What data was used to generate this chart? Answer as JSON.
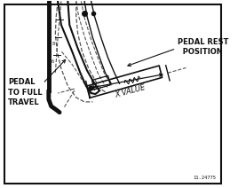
{
  "bg_color": "#ffffff",
  "border_color": "#111111",
  "line_color": "#111111",
  "dashed_color": "#555555",
  "text_color": "#111111",
  "label_pedal_rest": "PEDAL REST\n  POSITION",
  "label_pedal_full": "PEDAL\nTO FULL\nTRAVEL",
  "label_x_value": "X VALUE",
  "ref_code": "11.24775",
  "fig_width": 2.68,
  "fig_height": 2.12
}
